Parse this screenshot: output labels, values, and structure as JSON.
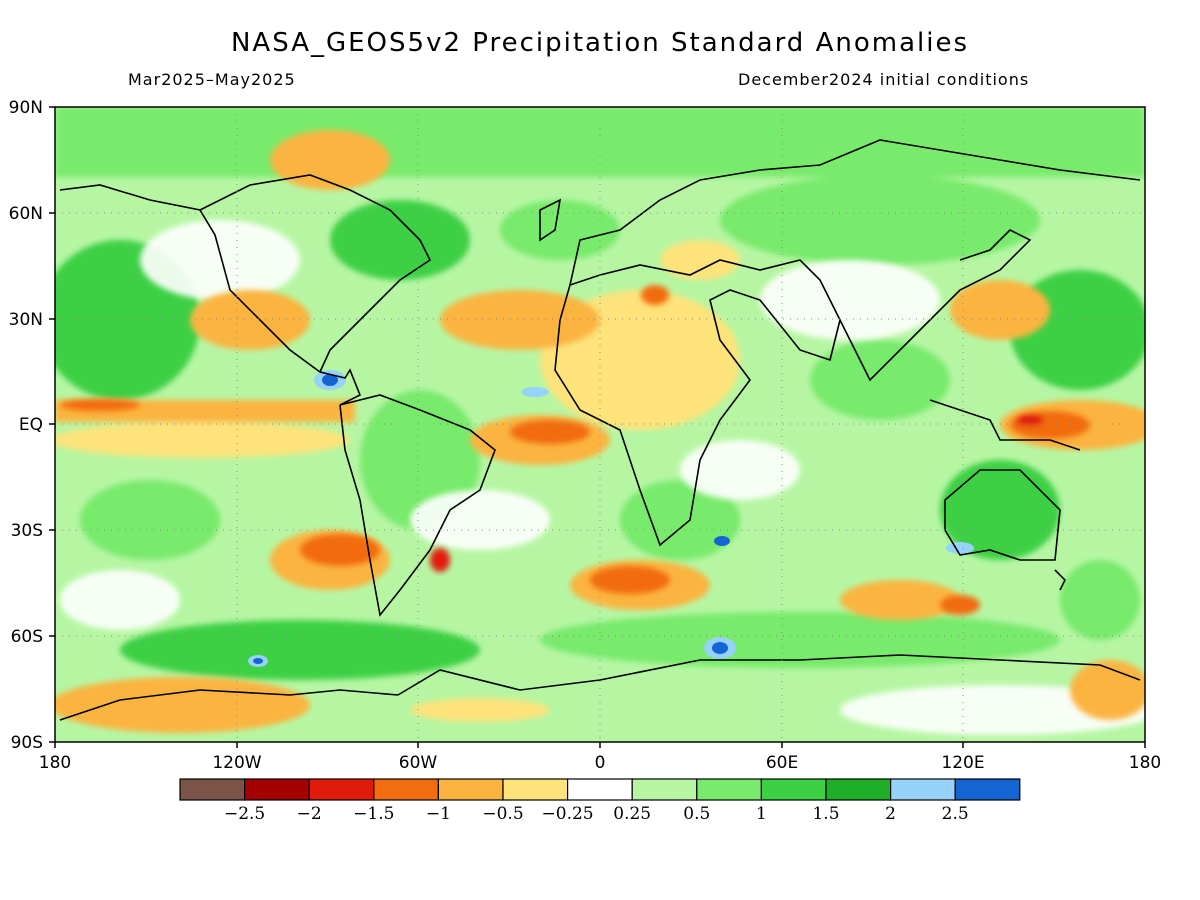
{
  "title": "NASA_GEOS5v2 Precipitation Standard Anomalies",
  "period": "Mar2025–May2025",
  "init": "December2024 initial conditions",
  "lat_labels": [
    "90N",
    "60N",
    "30N",
    "EQ",
    "30S",
    "60S",
    "90S"
  ],
  "lon_labels": [
    "180",
    "120W",
    "60W",
    "0",
    "60E",
    "120E",
    "180"
  ],
  "colorbar": {
    "colors": [
      "#7a5446",
      "#a50000",
      "#e11b0a",
      "#f26c10",
      "#fbb440",
      "#fde37a",
      "#ffffff",
      "#b6f6a3",
      "#78ea6c",
      "#3ed044",
      "#1fae28",
      "#96d2fa",
      "#1464d2"
    ],
    "labels": [
      "−2.5",
      "−2",
      "−1.5",
      "−1",
      "−0.5",
      "−0.25",
      "0.25",
      "0.5",
      "1",
      "1.5",
      "2",
      "2.5"
    ]
  }
}
